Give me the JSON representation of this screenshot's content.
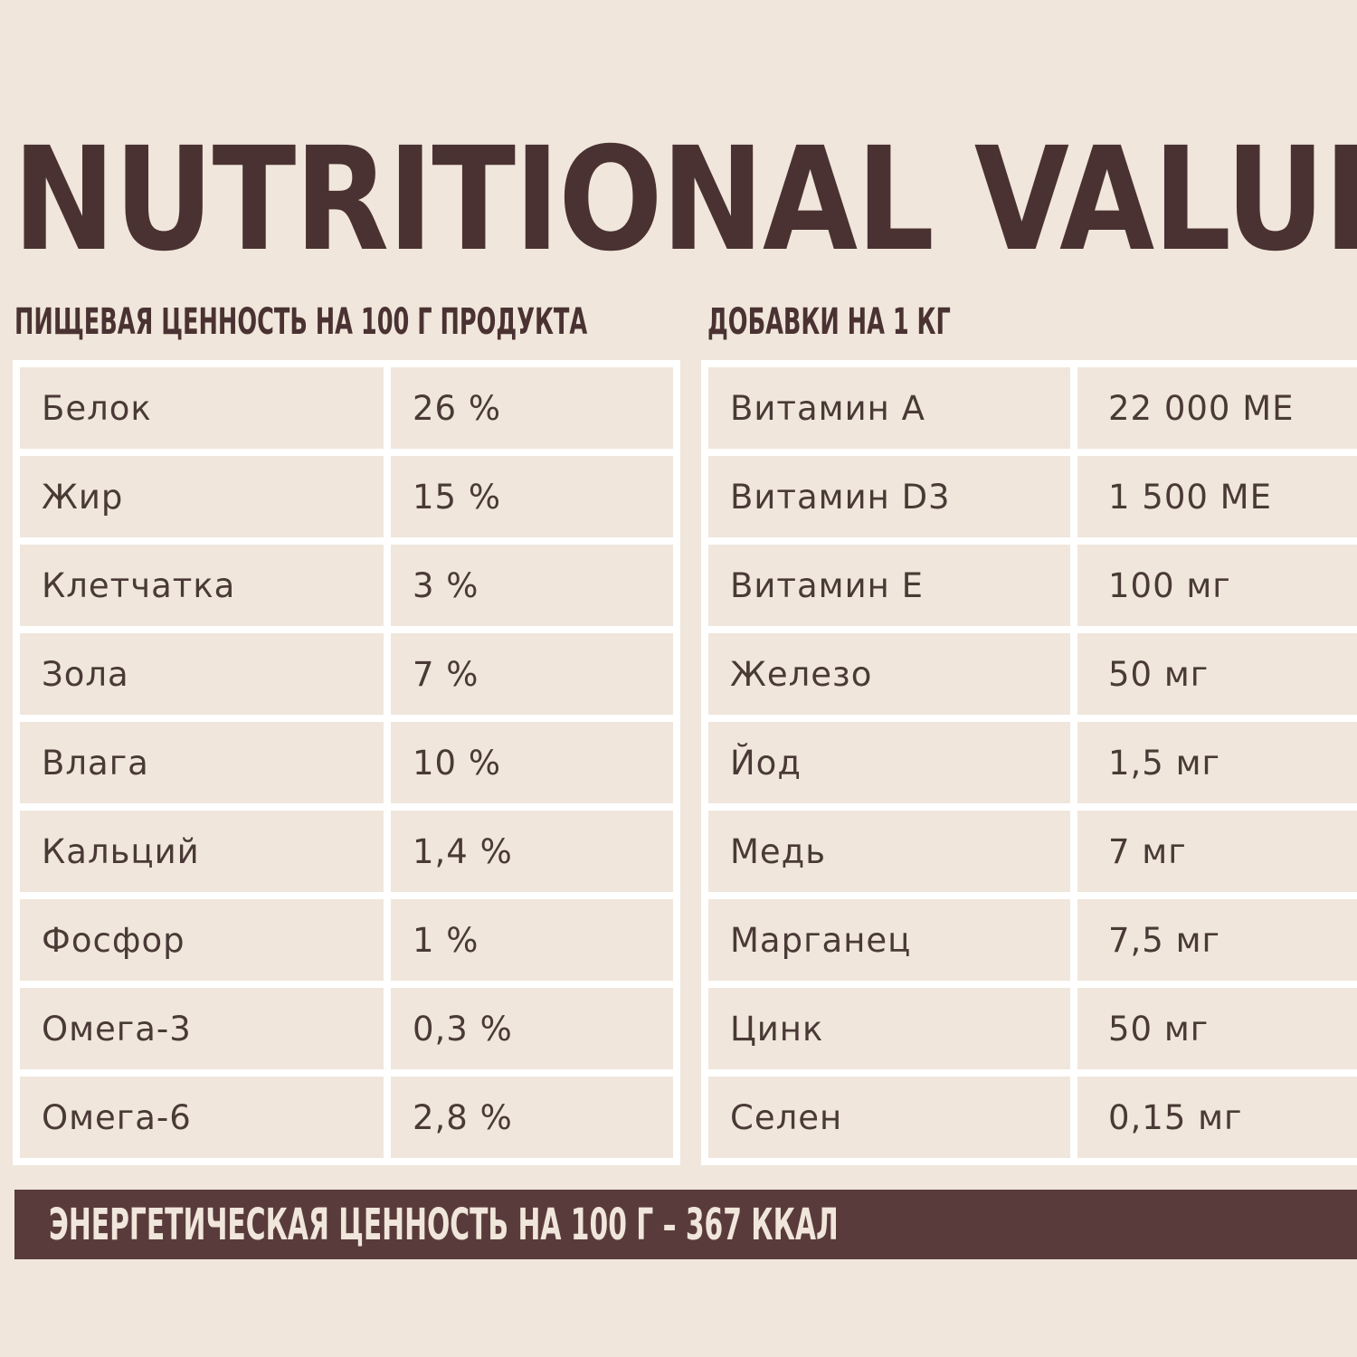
{
  "title": "NUTRITIONAL VALUE",
  "nutrition": {
    "heading": "ПИЩЕВАЯ ЦЕННОСТЬ НА 100 Г ПРОДУКТА",
    "rows": [
      {
        "name": "Белок",
        "value": "26 %"
      },
      {
        "name": "Жир",
        "value": "15 %"
      },
      {
        "name": "Клетчатка",
        "value": "3 %"
      },
      {
        "name": "Зола",
        "value": "7 %"
      },
      {
        "name": "Влага",
        "value": "10 %"
      },
      {
        "name": "Кальций",
        "value": "1,4 %"
      },
      {
        "name": "Фосфор",
        "value": "1 %"
      },
      {
        "name": "Омега-3",
        "value": "0,3 %"
      },
      {
        "name": "Омега-6",
        "value": "2,8 %"
      }
    ]
  },
  "additives": {
    "heading": "ДОБАВКИ НА 1 КГ",
    "rows": [
      {
        "name": "Витамин А",
        "value": "22 000 МЕ"
      },
      {
        "name": "Витамин D3",
        "value": "1 500 МЕ"
      },
      {
        "name": "Витамин Е",
        "value": "100 мг"
      },
      {
        "name": "Железо",
        "value": "50 мг"
      },
      {
        "name": "Йод",
        "value": "1,5 мг"
      },
      {
        "name": "Медь",
        "value": "7 мг"
      },
      {
        "name": "Марганец",
        "value": "7,5 мг"
      },
      {
        "name": "Цинк",
        "value": "50 мг"
      },
      {
        "name": "Селен",
        "value": "0,15 мг"
      }
    ]
  },
  "energy": "ЭНЕРГЕТИЧЕСКАЯ ЦЕННОСТЬ НА 100 Г – 367 ККАЛ",
  "colors": {
    "background": "#f0e6db",
    "title": "#4a3232",
    "bar": "#5a3b3b",
    "cell_text": "#4a3a36",
    "grid": "#ffffff"
  }
}
